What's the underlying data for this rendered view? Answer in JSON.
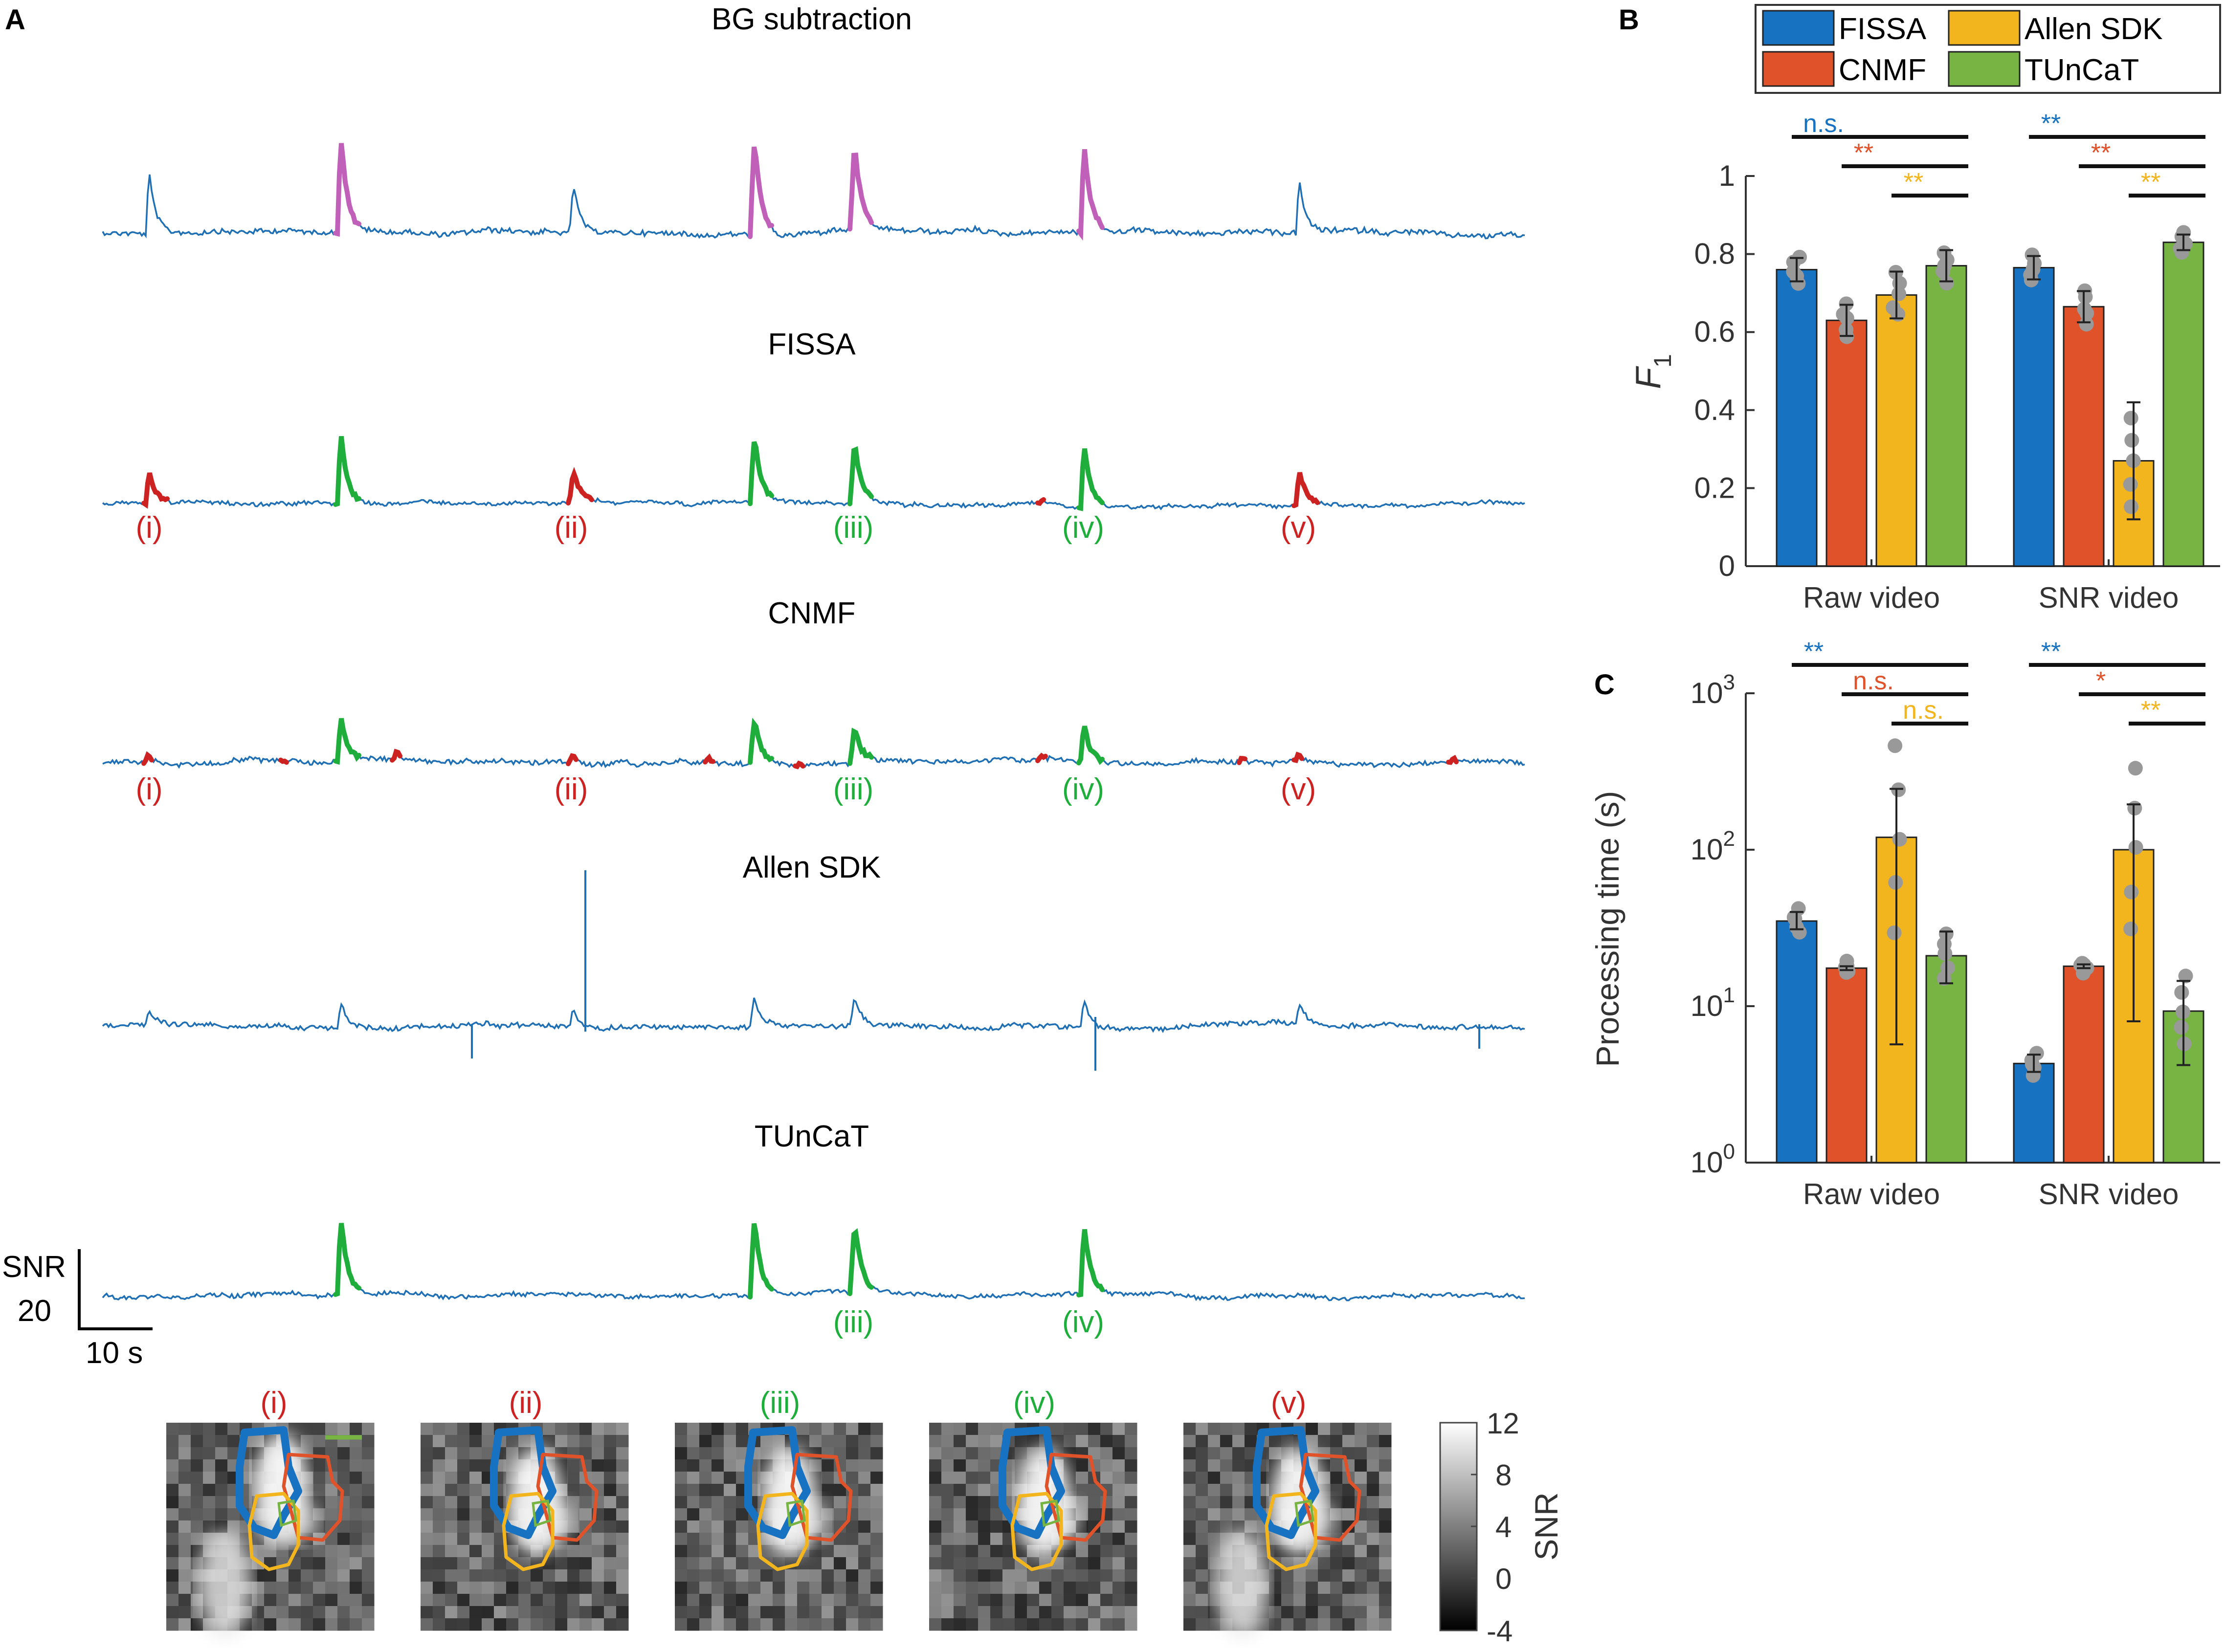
{
  "panels": {
    "a": "A",
    "b": "B",
    "c": "C"
  },
  "colors": {
    "trace": "#1f6fb5",
    "false_positive": "#cc2222",
    "true_positive": "#1fae3c",
    "bg_event": "#c060b8",
    "fissa": "#1772c2",
    "cnmf": "#e0522a",
    "allen": "#f2b51e",
    "tuncat": "#77b444",
    "dot": "#999999"
  },
  "panel_a": {
    "trace_titles": [
      "BG subtraction",
      "FISSA",
      "CNMF",
      "Allen SDK",
      "TUnCaT"
    ],
    "event_labels": {
      "fissa": [
        {
          "text": "(i)",
          "type": "fp"
        },
        {
          "text": "(ii)",
          "type": "fp"
        },
        {
          "text": "(iii)",
          "type": "tp"
        },
        {
          "text": "(iv)",
          "type": "tp"
        },
        {
          "text": "(v)",
          "type": "fp"
        }
      ],
      "cnmf": [
        {
          "text": "(i)",
          "type": "fp"
        },
        {
          "text": "(ii)",
          "type": "fp"
        },
        {
          "text": "(iii)",
          "type": "tp"
        },
        {
          "text": "(iv)",
          "type": "tp"
        },
        {
          "text": "(v)",
          "type": "fp"
        }
      ],
      "tuncat": [
        {
          "text": "(iii)",
          "type": "tp"
        },
        {
          "text": "(iv)",
          "type": "tp"
        }
      ]
    },
    "scale_bar": {
      "label_y_top": "SNR",
      "label_y_value": "20",
      "label_x": "10 s"
    },
    "image_labels": [
      {
        "text": "(i)",
        "type": "fp"
      },
      {
        "text": "(ii)",
        "type": "fp"
      },
      {
        "text": "(iii)",
        "type": "tp"
      },
      {
        "text": "(iv)",
        "type": "tp"
      },
      {
        "text": "(v)",
        "type": "fp"
      }
    ],
    "colorbar": {
      "label": "SNR",
      "ticks": [
        "12",
        "8",
        "4",
        "0",
        "-4"
      ]
    }
  },
  "legend": [
    "FISSA",
    "Allen SDK",
    "CNMF",
    "TUnCaT"
  ],
  "chart_data": [
    {
      "type": "bar",
      "panel": "B",
      "ylabel": "F1",
      "ylabel_main": "F",
      "ylabel_sub": "1",
      "categories": [
        "Raw video",
        "SNR video"
      ],
      "ylim": [
        0,
        1
      ],
      "yticks": [
        "0",
        "0.2",
        "0.4",
        "0.6",
        "0.8",
        "1"
      ],
      "series": [
        {
          "name": "FISSA",
          "values": [
            0.76,
            0.765
          ],
          "err": [
            0.03,
            0.03
          ]
        },
        {
          "name": "CNMF",
          "values": [
            0.63,
            0.665
          ],
          "err": [
            0.04,
            0.04
          ]
        },
        {
          "name": "Allen SDK",
          "values": [
            0.695,
            0.27
          ],
          "err": [
            0.06,
            0.15
          ]
        },
        {
          "name": "TUnCaT",
          "values": [
            0.77,
            0.83
          ],
          "err": [
            0.04,
            0.02
          ]
        }
      ],
      "significance": [
        {
          "group": 0,
          "from": 0,
          "text": "n.s.",
          "color": "fissa"
        },
        {
          "group": 0,
          "from": 1,
          "text": "**",
          "color": "cnmf"
        },
        {
          "group": 0,
          "from": 2,
          "text": "**",
          "color": "allen"
        },
        {
          "group": 1,
          "from": 0,
          "text": "**",
          "color": "fissa"
        },
        {
          "group": 1,
          "from": 1,
          "text": "**",
          "color": "cnmf"
        },
        {
          "group": 1,
          "from": 2,
          "text": "**",
          "color": "allen"
        }
      ]
    },
    {
      "type": "bar",
      "panel": "C",
      "scale": "log",
      "ylabel": "Processing time (s)",
      "categories": [
        "Raw video",
        "SNR video"
      ],
      "ylim": [
        1,
        1000
      ],
      "yticks": [
        {
          "base": "10",
          "exp": "0"
        },
        {
          "base": "10",
          "exp": "1"
        },
        {
          "base": "10",
          "exp": "2"
        },
        {
          "base": "10",
          "exp": "3"
        }
      ],
      "series": [
        {
          "name": "FISSA",
          "values": [
            35,
            4.3
          ],
          "err_low": [
            31,
            3.8
          ],
          "err_high": [
            40,
            4.9
          ]
        },
        {
          "name": "CNMF",
          "values": [
            17.5,
            18
          ],
          "err_low": [
            17,
            17.5
          ],
          "err_high": [
            18,
            18.5
          ]
        },
        {
          "name": "Allen SDK",
          "values": [
            120,
            100
          ],
          "err_low": [
            5.7,
            8
          ],
          "err_high": [
            245,
            195
          ]
        },
        {
          "name": "TUnCaT",
          "values": [
            21,
            9.3
          ],
          "err_low": [
            14,
            4.2
          ],
          "err_high": [
            30,
            14.5
          ]
        }
      ],
      "significance": [
        {
          "group": 0,
          "from": 0,
          "text": "**",
          "color": "fissa"
        },
        {
          "group": 0,
          "from": 1,
          "text": "n.s.",
          "color": "cnmf"
        },
        {
          "group": 0,
          "from": 2,
          "text": "n.s.",
          "color": "allen"
        },
        {
          "group": 1,
          "from": 0,
          "text": "**",
          "color": "fissa"
        },
        {
          "group": 1,
          "from": 1,
          "text": "*",
          "color": "cnmf"
        },
        {
          "group": 1,
          "from": 2,
          "text": "**",
          "color": "allen"
        }
      ]
    }
  ]
}
